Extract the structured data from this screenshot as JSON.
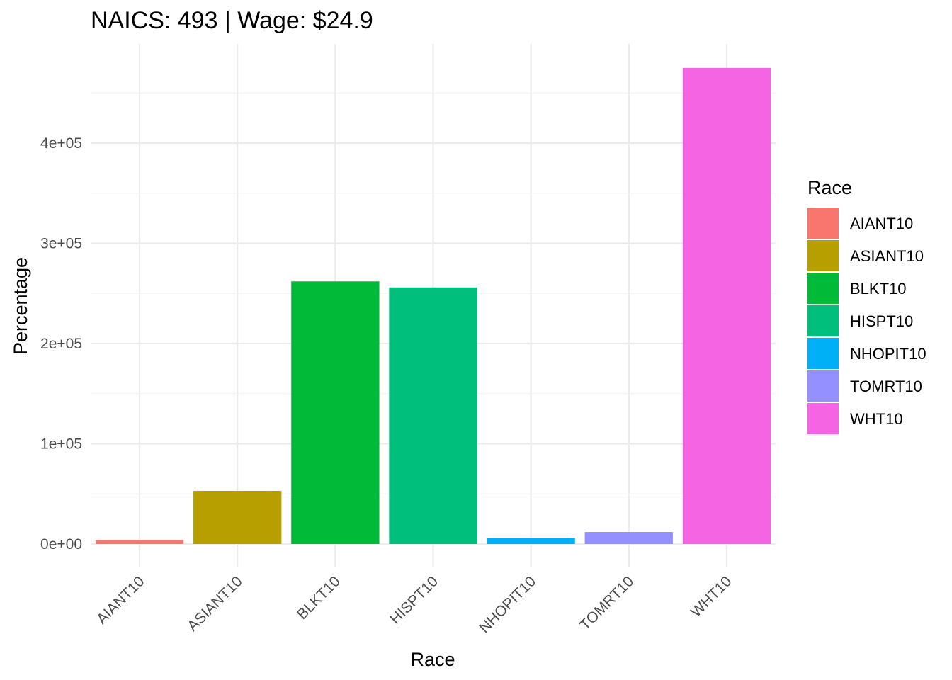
{
  "chart_data": {
    "type": "bar",
    "title": "NAICS: 493 | Wage: $24.9",
    "xlabel": "Race",
    "ylabel": "Percentage",
    "categories": [
      "AIANT10",
      "ASIANT10",
      "BLKT10",
      "HISPT10",
      "NHOPIT10",
      "TOMRT10",
      "WHT10"
    ],
    "values": [
      4000,
      53000,
      262000,
      256000,
      6000,
      12000,
      475000
    ],
    "colors": [
      "#F8766D",
      "#B79F00",
      "#00BA38",
      "#00BF7D",
      "#00B0F6",
      "#9590FF",
      "#F564E3"
    ],
    "y_ticks": [
      0,
      100000,
      200000,
      300000,
      400000
    ],
    "y_tick_labels": [
      "0e+00",
      "1e+05",
      "2e+05",
      "3e+05",
      "4e+05"
    ],
    "ylim": [
      0,
      495000
    ],
    "grid": true,
    "legend": {
      "title": "Race",
      "position": "right",
      "entries": [
        "AIANT10",
        "ASIANT10",
        "BLKT10",
        "HISPT10",
        "NHOPIT10",
        "TOMRT10",
        "WHT10"
      ]
    }
  }
}
